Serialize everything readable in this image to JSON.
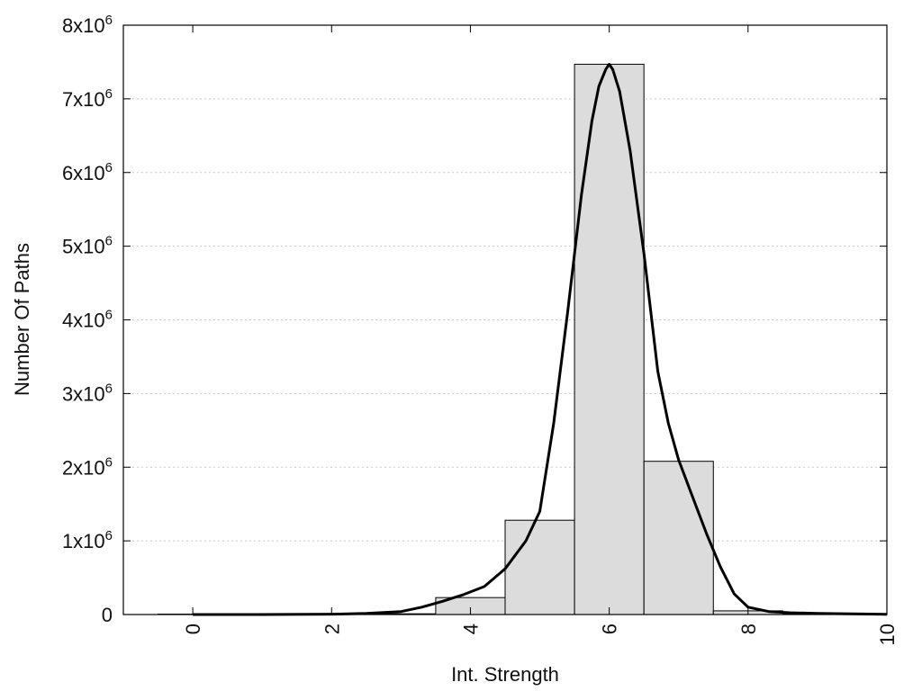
{
  "chart_data": {
    "type": "bar",
    "xlabel": "Int. Strength",
    "ylabel": "Number Of Paths",
    "xlim": [
      -1,
      10
    ],
    "ylim": [
      0,
      8000000
    ],
    "x_ticks": [
      0,
      2,
      4,
      6,
      8,
      10
    ],
    "y_ticks": [
      {
        "value": 0,
        "mantissa": "0",
        "exp": ""
      },
      {
        "value": 1000000,
        "mantissa": "1x10",
        "exp": "6"
      },
      {
        "value": 2000000,
        "mantissa": "2x10",
        "exp": "6"
      },
      {
        "value": 3000000,
        "mantissa": "3x10",
        "exp": "6"
      },
      {
        "value": 4000000,
        "mantissa": "4x10",
        "exp": "6"
      },
      {
        "value": 5000000,
        "mantissa": "5x10",
        "exp": "6"
      },
      {
        "value": 6000000,
        "mantissa": "6x10",
        "exp": "6"
      },
      {
        "value": 7000000,
        "mantissa": "7x10",
        "exp": "6"
      },
      {
        "value": 8000000,
        "mantissa": "8x10",
        "exp": "6"
      }
    ],
    "grid": "horizontal dotted",
    "legend": "none",
    "bars": [
      {
        "x0": -0.5,
        "x1": 0.5,
        "value": 5000
      },
      {
        "x0": 0.5,
        "x1": 1.5,
        "value": 5000
      },
      {
        "x0": 1.5,
        "x1": 2.5,
        "value": 5000
      },
      {
        "x0": 2.5,
        "x1": 3.5,
        "value": 10000
      },
      {
        "x0": 3.5,
        "x1": 4.5,
        "value": 230000
      },
      {
        "x0": 4.5,
        "x1": 5.5,
        "value": 1280000
      },
      {
        "x0": 5.5,
        "x1": 6.5,
        "value": 7470000
      },
      {
        "x0": 6.5,
        "x1": 7.5,
        "value": 2080000
      },
      {
        "x0": 7.5,
        "x1": 8.5,
        "value": 50000
      },
      {
        "x0": 8.5,
        "x1": 9.5,
        "value": 5000
      },
      {
        "x0": 9.5,
        "x1": 10.5,
        "value": 3000
      }
    ],
    "curve": {
      "x": [
        0,
        1,
        2,
        2.5,
        3,
        3.3,
        3.6,
        3.9,
        4.2,
        4.5,
        4.8,
        5.0,
        5.2,
        5.4,
        5.6,
        5.75,
        5.85,
        5.95,
        6.0,
        6.05,
        6.15,
        6.3,
        6.5,
        6.7,
        6.85,
        7.0,
        7.2,
        7.4,
        7.6,
        7.8,
        8.0,
        8.3,
        8.6,
        9.0,
        9.5,
        10
      ],
      "y": [
        0,
        0,
        5000,
        15000,
        40000,
        100000,
        180000,
        270000,
        380000,
        620000,
        1000000,
        1400000,
        2600000,
        4100000,
        5700000,
        6700000,
        7170000,
        7400000,
        7470000,
        7400000,
        7100000,
        6300000,
        4900000,
        3300000,
        2600000,
        2100000,
        1600000,
        1100000,
        650000,
        280000,
        100000,
        40000,
        25000,
        15000,
        8000,
        3000
      ]
    }
  }
}
